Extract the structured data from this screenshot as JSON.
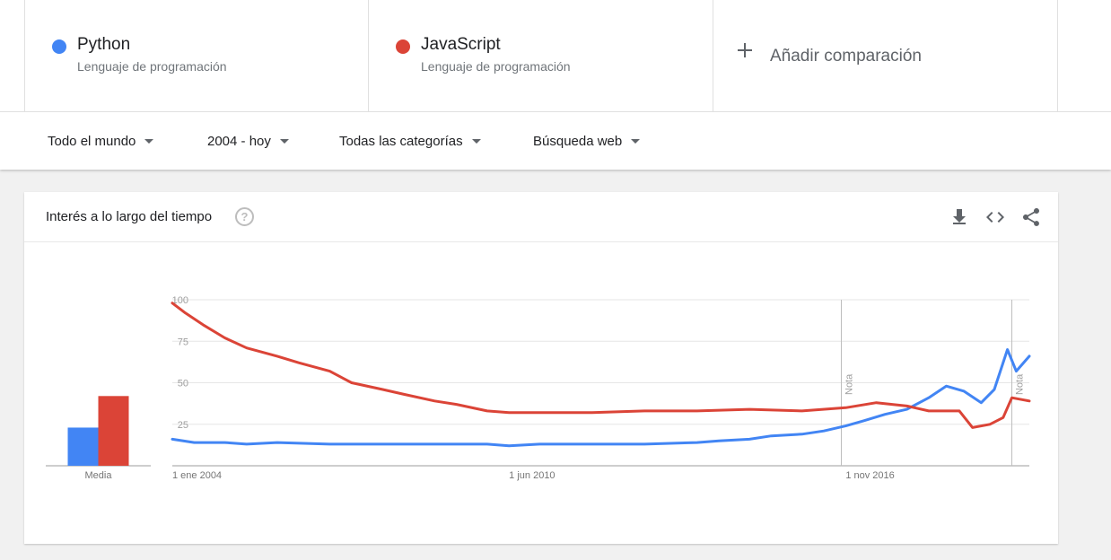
{
  "terms": [
    {
      "name": "Python",
      "category": "Lenguaje de programación",
      "color": "#4285f4"
    },
    {
      "name": "JavaScript",
      "category": "Lenguaje de programación",
      "color": "#db4437"
    }
  ],
  "add_comparison": "Añadir comparación",
  "filters": {
    "region": "Todo el mundo",
    "period": "2004 - hoy",
    "category": "Todas las categorías",
    "search_type": "Búsqueda web"
  },
  "card": {
    "title": "Interés a lo largo del tiempo",
    "help_glyph": "?",
    "icons": [
      "download-icon",
      "embed-code-icon",
      "share-icon"
    ]
  },
  "chart_data": {
    "type": "line",
    "title": "Interés a lo largo del tiempo",
    "x_tick_labels": [
      "1 ene 2004",
      "1 jun 2010",
      "1 nov 2016"
    ],
    "x_range": [
      "2004-01",
      "2020-05"
    ],
    "ylim": [
      0,
      100
    ],
    "y_ticks": [
      100,
      75,
      50,
      25
    ],
    "grid": true,
    "series": [
      {
        "name": "Python",
        "color": "#4285f4",
        "points": [
          [
            "2004-01",
            16
          ],
          [
            "2004-06",
            14
          ],
          [
            "2005-01",
            14
          ],
          [
            "2005-06",
            13
          ],
          [
            "2006-01",
            14
          ],
          [
            "2007-01",
            13
          ],
          [
            "2008-01",
            13
          ],
          [
            "2009-01",
            13
          ],
          [
            "2010-01",
            13
          ],
          [
            "2010-06",
            12
          ],
          [
            "2011-01",
            13
          ],
          [
            "2012-01",
            13
          ],
          [
            "2013-01",
            13
          ],
          [
            "2014-01",
            14
          ],
          [
            "2014-06",
            15
          ],
          [
            "2015-01",
            16
          ],
          [
            "2015-06",
            18
          ],
          [
            "2016-01",
            19
          ],
          [
            "2016-06",
            21
          ],
          [
            "2016-11",
            24
          ],
          [
            "2017-03",
            27
          ],
          [
            "2017-08",
            31
          ],
          [
            "2018-01",
            34
          ],
          [
            "2018-06",
            41
          ],
          [
            "2018-10",
            48
          ],
          [
            "2019-02",
            45
          ],
          [
            "2019-06",
            38
          ],
          [
            "2019-09",
            46
          ],
          [
            "2019-12",
            70
          ],
          [
            "2020-02",
            57
          ],
          [
            "2020-05",
            66
          ]
        ]
      },
      {
        "name": "JavaScript",
        "color": "#db4437",
        "points": [
          [
            "2004-01",
            98
          ],
          [
            "2004-04",
            92
          ],
          [
            "2004-08",
            85
          ],
          [
            "2005-01",
            77
          ],
          [
            "2005-06",
            71
          ],
          [
            "2006-01",
            66
          ],
          [
            "2006-06",
            62
          ],
          [
            "2007-01",
            57
          ],
          [
            "2007-06",
            50
          ],
          [
            "2008-01",
            46
          ],
          [
            "2008-06",
            43
          ],
          [
            "2009-01",
            39
          ],
          [
            "2009-06",
            37
          ],
          [
            "2010-01",
            33
          ],
          [
            "2010-06",
            32
          ],
          [
            "2011-01",
            32
          ],
          [
            "2012-01",
            32
          ],
          [
            "2013-01",
            33
          ],
          [
            "2014-01",
            33
          ],
          [
            "2015-01",
            34
          ],
          [
            "2016-01",
            33
          ],
          [
            "2016-11",
            35
          ],
          [
            "2017-06",
            38
          ],
          [
            "2018-01",
            36
          ],
          [
            "2018-06",
            33
          ],
          [
            "2019-01",
            33
          ],
          [
            "2019-04",
            23
          ],
          [
            "2019-08",
            25
          ],
          [
            "2019-11",
            29
          ],
          [
            "2020-01",
            41
          ],
          [
            "2020-05",
            39
          ]
        ]
      }
    ],
    "average_bars": {
      "label": "Media",
      "values": [
        {
          "name": "Python",
          "value": 23
        },
        {
          "name": "JavaScript",
          "value": 42
        }
      ]
    },
    "annotations": [
      {
        "label": "Nota",
        "x": "2016-10"
      },
      {
        "label": "Nota",
        "x": "2020-01"
      }
    ]
  }
}
